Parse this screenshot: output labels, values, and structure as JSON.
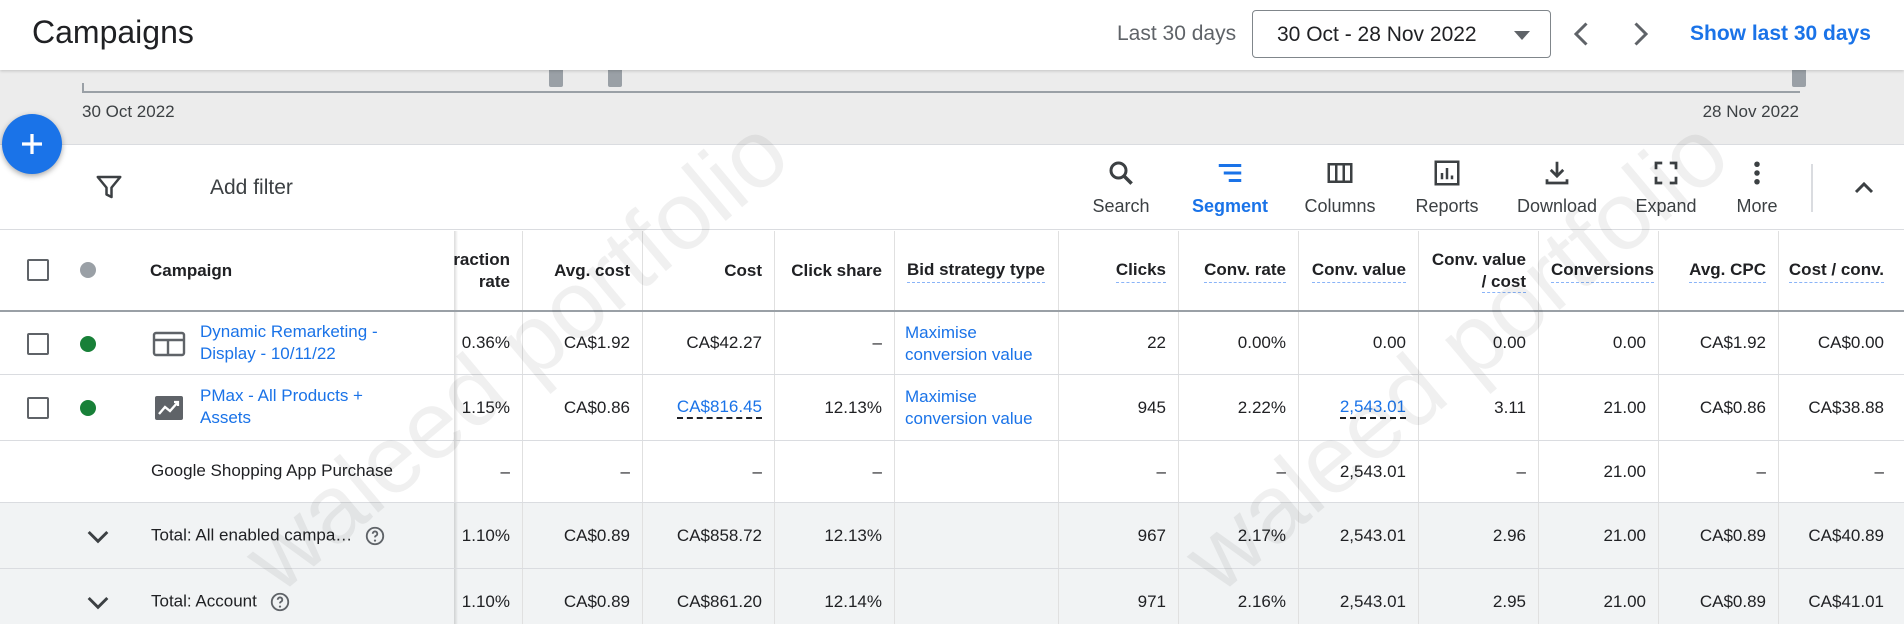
{
  "header": {
    "title": "Campaigns",
    "range_label": "Last 30 days",
    "date_range": "30 Oct - 28 Nov 2022",
    "show_link": "Show last 30 days",
    "prev_icon": "chevron-left-icon",
    "next_icon": "chevron-right-icon"
  },
  "timeline": {
    "start_label": "30 Oct 2022",
    "end_label": "28 Nov 2022"
  },
  "toolbar": {
    "add_filter_label": "Add filter",
    "tools": [
      {
        "label": "Search",
        "icon": "search-icon",
        "active": false
      },
      {
        "label": "Segment",
        "icon": "segment-icon",
        "active": true
      },
      {
        "label": "Columns",
        "icon": "columns-icon",
        "active": false
      },
      {
        "label": "Reports",
        "icon": "reports-icon",
        "active": false
      },
      {
        "label": "Download",
        "icon": "download-icon",
        "active": false
      },
      {
        "label": "Expand",
        "icon": "expand-icon",
        "active": false
      },
      {
        "label": "More",
        "icon": "more-vert-icon",
        "active": false
      }
    ]
  },
  "table": {
    "campaign_header": "Campaign",
    "columns": [
      {
        "label_line1": "raction",
        "label_line2": "rate",
        "dashed": false
      },
      {
        "label_line1": "Avg. cost",
        "label_line2": "",
        "dashed": false
      },
      {
        "label_line1": "Cost",
        "label_line2": "",
        "dashed": false
      },
      {
        "label_line1": "Click share",
        "label_line2": "",
        "dashed": false
      },
      {
        "label_line1": "Bid strategy type",
        "label_line2": "",
        "dashed": true
      },
      {
        "label_line1": "Clicks",
        "label_line2": "",
        "dashed": true
      },
      {
        "label_line1": "Conv. rate",
        "label_line2": "",
        "dashed": true
      },
      {
        "label_line1": "Conv. value",
        "label_line2": "",
        "dashed": true
      },
      {
        "label_line1": "Conv. value",
        "label_line2": "/ cost",
        "dashed": true
      },
      {
        "label_line1": "Conversions",
        "label_line2": "",
        "dashed": true
      },
      {
        "label_line1": "Avg. CPC",
        "label_line2": "",
        "dashed": true
      },
      {
        "label_line1": "Cost / conv.",
        "label_line2": "",
        "dashed": true
      }
    ],
    "rows": [
      {
        "status": "enabled",
        "type_icon": "display-campaign-icon",
        "name_line1": "Dynamic Remarketing -",
        "name_line2": "Display - 10/11/22",
        "values": [
          "0.36%",
          "CA$1.92",
          "CA$42.27",
          "–",
          "Maximise|conversion value",
          "22",
          "0.00%",
          "0.00",
          "0.00",
          "0.00",
          "CA$1.92",
          "CA$0.00"
        ]
      },
      {
        "status": "enabled",
        "type_icon": "performance-max-icon",
        "name_line1": "PMax - All Products +",
        "name_line2": "Assets",
        "values": [
          "1.15%",
          "CA$0.86",
          "CA$816.45",
          "12.13%",
          "Maximise|conversion value",
          "945",
          "2.22%",
          "2,543.01",
          "3.11",
          "21.00",
          "CA$0.86",
          "CA$38.88"
        ]
      }
    ],
    "conversion_row": {
      "name": "Google Shopping App Purchase",
      "values": [
        "–",
        "–",
        "–",
        "–",
        "",
        "–",
        "–",
        "2,543.01",
        "–",
        "21.00",
        "–",
        "–"
      ]
    },
    "totals": [
      {
        "name": "Total: All enabled campa…",
        "values": [
          "1.10%",
          "CA$0.89",
          "CA$858.72",
          "12.13%",
          "",
          "967",
          "2.17%",
          "2,543.01",
          "2.96",
          "21.00",
          "CA$0.89",
          "CA$40.89"
        ]
      },
      {
        "name": "Total: Account",
        "values": [
          "1.10%",
          "CA$0.89",
          "CA$861.20",
          "12.14%",
          "",
          "971",
          "2.16%",
          "2,543.01",
          "2.95",
          "21.00",
          "CA$0.89",
          "CA$41.01"
        ]
      }
    ]
  },
  "watermark": "waleed portfolio",
  "colors": {
    "accent": "#1a73e8",
    "enabled_status": "#188038",
    "fab": "#1a73e8"
  }
}
